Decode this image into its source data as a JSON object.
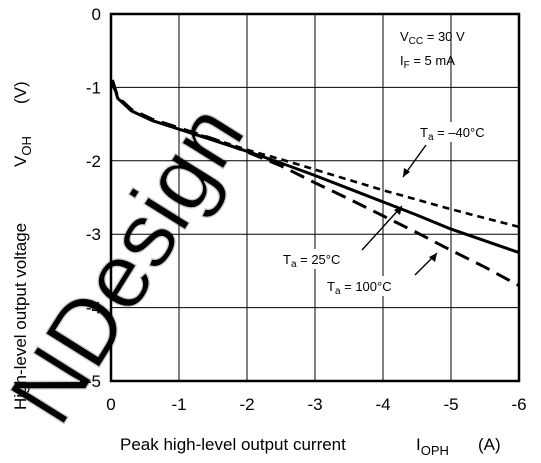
{
  "chart_data": {
    "type": "line",
    "xlabel": "Peak high-level output current",
    "xlabel_symbol": "I",
    "xlabel_sub": "OPH",
    "xlabel_unit": "(A)",
    "ylabel": "High-level output voltage",
    "ylabel_symbol": "V",
    "ylabel_sub": "OH",
    "ylabel_unit": "(V)",
    "xlim": [
      0,
      -6
    ],
    "ylim": [
      -5,
      0
    ],
    "xticks": [
      "0",
      "-1",
      "-2",
      "-3",
      "-4",
      "-5",
      "-6"
    ],
    "yticks": [
      "0",
      "-1",
      "-2",
      "-3",
      "-4",
      "-5"
    ],
    "grid": true,
    "conditions": [
      {
        "sym": "V",
        "sub": "CC",
        "val": " = 30 V"
      },
      {
        "sym": "I",
        "sub": "F",
        "val": " = 5 mA"
      }
    ],
    "series": [
      {
        "name": "Ta = -40°C",
        "label_sym": "T",
        "label_sub": "a",
        "label_val": " = –40°C",
        "style": "short-dash",
        "x": [
          -0.02,
          -0.1,
          -0.3,
          -0.6,
          -1.0,
          -1.5,
          -2.0,
          -2.5,
          -3.0,
          -3.5,
          -4.0,
          -4.5,
          -5.0,
          -5.5,
          -6.0
        ],
        "y": [
          -0.95,
          -1.15,
          -1.32,
          -1.45,
          -1.57,
          -1.7,
          -1.85,
          -1.98,
          -2.12,
          -2.26,
          -2.4,
          -2.53,
          -2.66,
          -2.78,
          -2.9
        ]
      },
      {
        "name": "Ta = 25°C",
        "label_sym": "T",
        "label_sub": "a",
        "label_val": " = 25°C",
        "style": "solid",
        "x": [
          -0.02,
          -0.1,
          -0.3,
          -0.6,
          -1.0,
          -1.5,
          -2.0,
          -2.5,
          -3.0,
          -3.5,
          -4.0,
          -4.5,
          -5.0,
          -5.5,
          -6.0
        ],
        "y": [
          -0.9,
          -1.15,
          -1.32,
          -1.45,
          -1.57,
          -1.72,
          -1.87,
          -2.03,
          -2.2,
          -2.38,
          -2.56,
          -2.74,
          -2.93,
          -3.09,
          -3.25
        ]
      },
      {
        "name": "Ta = 100°C",
        "label_sym": "T",
        "label_sub": "a",
        "label_val": " = 100°C",
        "style": "long-dash",
        "x": [
          -0.02,
          -0.1,
          -0.3,
          -0.6,
          -1.0,
          -1.5,
          -2.0,
          -2.5,
          -3.0,
          -3.5,
          -4.0,
          -4.5,
          -5.0,
          -5.5,
          -6.0
        ],
        "y": [
          -0.9,
          -1.13,
          -1.3,
          -1.43,
          -1.55,
          -1.7,
          -1.88,
          -2.07,
          -2.3,
          -2.52,
          -2.75,
          -2.98,
          -3.22,
          -3.45,
          -3.7
        ]
      }
    ]
  },
  "watermark": "NDesign"
}
